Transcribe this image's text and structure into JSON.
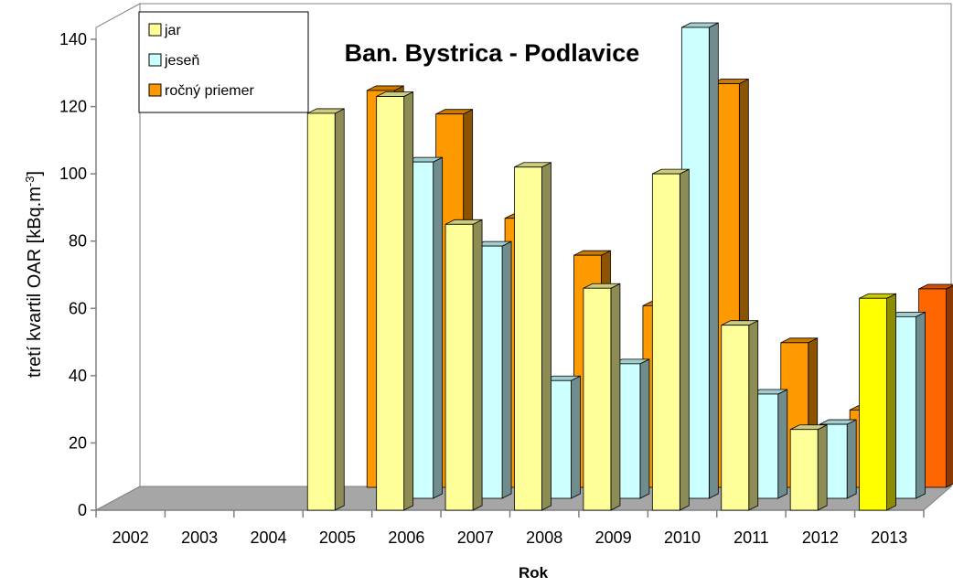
{
  "chart_data": {
    "type": "bar",
    "title": "Ban. Bystrica - Podlavice",
    "xlabel": "Rok",
    "ylabel": "tretí kvartil OAR [kBq.m",
    "ylabel_sup": "-3",
    "ylabel_end": "]",
    "ylim": [
      0,
      140
    ],
    "yticks": [
      "0",
      "20",
      "40",
      "60",
      "80",
      "100",
      "120",
      "140"
    ],
    "grid": false,
    "legend_position": "top-left",
    "categories": [
      "2002",
      "2003",
      "2004",
      "2005",
      "2006",
      "2007",
      "2008",
      "2009",
      "2010",
      "2011",
      "2012",
      "2013"
    ],
    "series": [
      {
        "name": "jar",
        "color": "#FFFF99",
        "values": [
          null,
          null,
          null,
          118,
          123,
          85,
          102,
          66,
          100,
          55,
          24,
          63
        ]
      },
      {
        "name": "jeseň",
        "color": "#CCFFFF",
        "values": [
          null,
          null,
          null,
          null,
          100,
          75,
          35,
          40,
          140,
          31,
          22,
          54
        ]
      },
      {
        "name": "ročný priemer",
        "color": "#FF9900",
        "values": [
          null,
          null,
          null,
          118,
          111,
          80,
          69,
          54,
          120,
          43,
          23,
          59
        ]
      }
    ],
    "highlight": {
      "category": "2013",
      "colors": {
        "jar": "#FFFF00",
        "ročný priemer": "#FF6600"
      }
    }
  }
}
